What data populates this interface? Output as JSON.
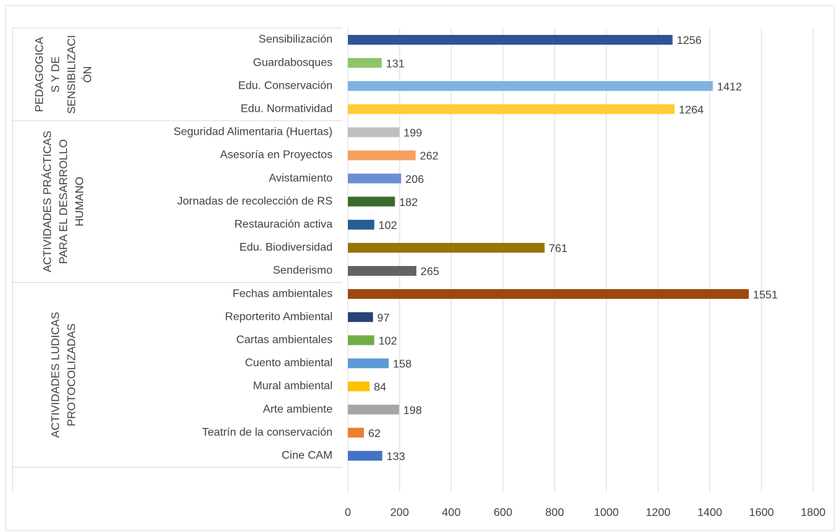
{
  "chart_data": {
    "type": "bar",
    "orientation": "horizontal",
    "xlim": [
      0,
      1800
    ],
    "xticks": [
      0,
      200,
      400,
      600,
      800,
      1000,
      1200,
      1400,
      1600,
      1800
    ],
    "grid": true,
    "groups": [
      {
        "label_lines": [
          "PEDAGOGICA",
          "S Y DE",
          "SENSIBILIZACI",
          "ÓN"
        ],
        "categories": [
          "Sensibilización",
          "Guardabosques",
          "Edu. Conservación",
          "Edu. Normatividad"
        ],
        "values": [
          1256,
          131,
          1412,
          1264
        ],
        "colors": [
          "#2f5597",
          "#8ec46b",
          "#7fb2e0",
          "#ffcc33"
        ]
      },
      {
        "label_lines": [
          "ACTIVIDADES PRÁCTICAS",
          "PARA EL DESARROLLO",
          "HUMANO"
        ],
        "categories": [
          "Seguridad Alimentaria (Huertas)",
          "Asesoría en Proyectos",
          "Avistamiento",
          "Jornadas de recolección de RS",
          "Restauración activa",
          "Edu. Biodiversidad",
          "Senderismo"
        ],
        "values": [
          199,
          262,
          206,
          182,
          102,
          761,
          265
        ],
        "colors": [
          "#bfbfbf",
          "#f4a060",
          "#6a8fd4",
          "#3b6b2a",
          "#255e91",
          "#9a7300",
          "#636363"
        ]
      },
      {
        "label_lines": [
          "ACTIVIDADES LUDICAS",
          "PROTOCOLIZADAS"
        ],
        "categories": [
          "Fechas ambientales",
          "Reporterito Ambiental",
          "Cartas ambientales",
          "Cuento ambiental",
          "Mural ambiental",
          "Arte ambiente",
          "Teatrín de la conservación",
          "Cine CAM"
        ],
        "values": [
          1551,
          97,
          102,
          158,
          84,
          198,
          62,
          133
        ],
        "colors": [
          "#9e480e",
          "#264478",
          "#70ad47",
          "#5b9bd5",
          "#ffc000",
          "#a5a5a5",
          "#ed7d31",
          "#4472c4"
        ]
      }
    ]
  }
}
